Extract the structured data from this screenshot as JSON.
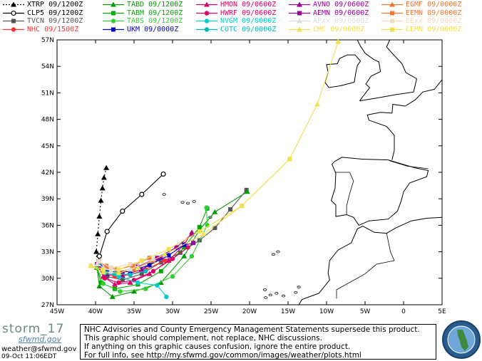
{
  "legend": [
    {
      "name": "XTRP 09/1200Z",
      "color": "#000000",
      "marker": "triangle",
      "line": "dotted"
    },
    {
      "name": "TABD 09/1200Z",
      "color": "#009900",
      "marker": "triangle",
      "line": "solid"
    },
    {
      "name": "HMON 09/0600Z",
      "color": "#dd0066",
      "marker": "triangle",
      "line": "solid"
    },
    {
      "name": "AVNO 09/0600Z",
      "color": "#990099",
      "marker": "triangle",
      "line": "solid"
    },
    {
      "name": "EGMF 09/0000Z",
      "color": "#ee7733",
      "marker": "triangle",
      "line": "solid"
    },
    {
      "name": "CLP5 09/1200Z",
      "color": "#000000",
      "marker": "digit5",
      "line": "solid"
    },
    {
      "name": "TABM 09/1200Z",
      "color": "#00aa00",
      "marker": "square",
      "line": "solid"
    },
    {
      "name": "HWRF 09/0600Z",
      "color": "#dd0066",
      "marker": "circle",
      "line": "solid"
    },
    {
      "name": "AEMN 09/0600Z",
      "color": "#990099",
      "marker": "square",
      "line": "solid"
    },
    {
      "name": "EEMN 09/0000Z",
      "color": "#ee7733",
      "marker": "square",
      "line": "solid"
    },
    {
      "name": "TVCN 09/1200Z",
      "color": "#555555",
      "marker": "square",
      "line": "solid"
    },
    {
      "name": "TABS 09/1200Z",
      "color": "#33cc33",
      "marker": "circle",
      "line": "solid"
    },
    {
      "name": "NVGM 09/0000Z",
      "color": "#00cccc",
      "marker": "circle",
      "line": "solid"
    },
    {
      "name": "APxx 09/0600Z",
      "color": "#dddddd",
      "marker": "triangle",
      "line": "solid"
    },
    {
      "name": "EExx 09/0000Z",
      "color": "#f3d9c0",
      "marker": "square",
      "line": "solid"
    },
    {
      "name": "NHC 09/1500Z",
      "color": "#ff3333",
      "marker": "circle",
      "line": "solid"
    },
    {
      "name": "UKM 09/0000Z",
      "color": "#0000cc",
      "marker": "square",
      "line": "solid"
    },
    {
      "name": "COTC 09/0000Z",
      "color": "#00bbbb",
      "marker": "circle",
      "line": "solid"
    },
    {
      "name": "CMC 09/0000Z",
      "color": "#f0e050",
      "marker": "triangle",
      "line": "solid"
    },
    {
      "name": "CEMN 09/0000Z",
      "color": "#f0e050",
      "marker": "square",
      "line": "solid"
    }
  ],
  "chart_data": {
    "type": "line",
    "title": "",
    "xlabel": "",
    "ylabel": "",
    "x_ticks": [
      "45W",
      "40W",
      "35W",
      "30W",
      "25W",
      "20W",
      "15W",
      "10W",
      "5W",
      "0",
      "5E"
    ],
    "y_ticks": [
      "27N",
      "30N",
      "33N",
      "36N",
      "39N",
      "42N",
      "45N",
      "48N",
      "51N",
      "54N",
      "57N"
    ],
    "xlim": [
      -45,
      5
    ],
    "ylim": [
      27,
      57
    ],
    "grid": false,
    "series": [
      {
        "name": "XTRP 09/1200Z",
        "color": "#000000",
        "marker": "triangle",
        "dash": "2,3",
        "points": [
          [
            -39.8,
            31.2
          ],
          [
            -39.9,
            33.0
          ],
          [
            -39.7,
            35.0
          ],
          [
            -39.5,
            37.0
          ],
          [
            -39.3,
            38.8
          ],
          [
            -39.1,
            40.2
          ],
          [
            -38.9,
            41.4
          ],
          [
            -38.6,
            42.5
          ]
        ]
      },
      {
        "name": "CLP5 09/1200Z",
        "color": "#000000",
        "marker": "digit5",
        "dash": "",
        "points": [
          [
            -39.8,
            31.2
          ],
          [
            -39.5,
            32.5
          ],
          [
            -38.5,
            35.3
          ],
          [
            -36.5,
            37.6
          ],
          [
            -34.0,
            39.5
          ],
          [
            -31.2,
            41.8
          ]
        ]
      },
      {
        "name": "TVCN 09/1200Z",
        "color": "#555555",
        "marker": "square",
        "dash": "",
        "points": [
          [
            -39.8,
            31.2
          ],
          [
            -38.5,
            30.2
          ],
          [
            -36.5,
            29.8
          ],
          [
            -34.0,
            30.5
          ],
          [
            -31.5,
            31.8
          ],
          [
            -29.0,
            32.9
          ],
          [
            -26.5,
            34.3
          ],
          [
            -24.5,
            35.7
          ],
          [
            -22.5,
            37.8
          ],
          [
            -20.4,
            40.0
          ]
        ]
      },
      {
        "name": "NHC 09/1500Z",
        "color": "#ff3333",
        "marker": "circle",
        "dash": "",
        "points": [
          [
            -39.8,
            31.2
          ],
          [
            -38.8,
            30.5
          ],
          [
            -37.5,
            30.2
          ],
          [
            -35.5,
            30.4
          ],
          [
            -33.5,
            31.0
          ],
          [
            -31.0,
            32.0
          ]
        ]
      },
      {
        "name": "TABD 09/1200Z",
        "color": "#009900",
        "marker": "triangle",
        "dash": "",
        "points": [
          [
            -39.8,
            31.2
          ],
          [
            -39.5,
            29.1
          ],
          [
            -37.8,
            27.9
          ],
          [
            -35.0,
            28.5
          ],
          [
            -31.5,
            29.5
          ],
          [
            -28.5,
            32.5
          ],
          [
            -26.5,
            35.5
          ],
          [
            -24.5,
            37.5
          ],
          [
            -20.3,
            39.8
          ]
        ]
      },
      {
        "name": "TABM 09/1200Z",
        "color": "#00aa00",
        "marker": "square",
        "dash": "",
        "points": [
          [
            -39.8,
            31.2
          ],
          [
            -39.3,
            29.5
          ],
          [
            -37.5,
            28.8
          ],
          [
            -34.5,
            29.3
          ],
          [
            -31.5,
            30.8
          ],
          [
            -28.5,
            33.5
          ],
          [
            -26.5,
            35.8
          ],
          [
            -25.5,
            37.9
          ]
        ]
      },
      {
        "name": "TABS 09/1200Z",
        "color": "#33cc33",
        "marker": "circle",
        "dash": "",
        "points": [
          [
            -39.8,
            31.2
          ],
          [
            -39.0,
            29.4
          ],
          [
            -36.8,
            28.5
          ],
          [
            -33.5,
            28.8
          ],
          [
            -30.0,
            30.2
          ],
          [
            -27.5,
            32.5
          ],
          [
            -25.5,
            36.0
          ],
          [
            -25.6,
            38.0
          ]
        ]
      },
      {
        "name": "HMON 09/0600Z",
        "color": "#dd0066",
        "marker": "triangle",
        "dash": "",
        "points": [
          [
            -39.8,
            31.6
          ],
          [
            -39.0,
            30.2
          ],
          [
            -37.5,
            29.3
          ],
          [
            -35.5,
            29.5
          ],
          [
            -33.0,
            30.5
          ],
          [
            -30.5,
            32.0
          ],
          [
            -28.5,
            33.8
          ],
          [
            -27.5,
            35.2
          ]
        ]
      },
      {
        "name": "HWRF 09/0600Z",
        "color": "#dd0066",
        "marker": "circle",
        "dash": "",
        "points": [
          [
            -39.8,
            31.6
          ],
          [
            -38.8,
            30.0
          ],
          [
            -37.0,
            29.5
          ],
          [
            -35.0,
            29.8
          ],
          [
            -32.5,
            30.8
          ],
          [
            -30.0,
            32.2
          ],
          [
            -28.0,
            33.5
          ]
        ]
      },
      {
        "name": "AVNO 09/0600Z",
        "color": "#990099",
        "marker": "triangle",
        "dash": "",
        "points": [
          [
            -39.8,
            31.6
          ],
          [
            -38.5,
            30.5
          ],
          [
            -36.5,
            30.3
          ],
          [
            -34.0,
            31.0
          ],
          [
            -31.5,
            32.3
          ],
          [
            -29.5,
            33.5
          ],
          [
            -27.5,
            35.0
          ]
        ]
      },
      {
        "name": "AEMN 09/0600Z",
        "color": "#990099",
        "marker": "square",
        "dash": "",
        "points": [
          [
            -39.8,
            31.6
          ],
          [
            -38.5,
            30.8
          ],
          [
            -36.5,
            30.7
          ],
          [
            -34.5,
            31.3
          ],
          [
            -32.0,
            32.3
          ],
          [
            -29.5,
            33.5
          ],
          [
            -27.3,
            34.0
          ]
        ]
      },
      {
        "name": "UKM 09/0000Z",
        "color": "#0000cc",
        "marker": "square",
        "dash": "",
        "points": [
          [
            -39.6,
            31.9
          ],
          [
            -38.8,
            31.0
          ],
          [
            -37.5,
            30.6
          ],
          [
            -35.5,
            30.8
          ],
          [
            -33.0,
            31.5
          ],
          [
            -30.5,
            32.6
          ],
          [
            -28.5,
            33.8
          ]
        ]
      },
      {
        "name": "EGMF 09/0000Z",
        "color": "#ee7733",
        "marker": "triangle",
        "dash": "",
        "points": [
          [
            -39.6,
            31.9
          ],
          [
            -38.5,
            31.2
          ],
          [
            -37.0,
            30.8
          ],
          [
            -35.0,
            31.0
          ],
          [
            -32.5,
            32.0
          ]
        ]
      },
      {
        "name": "EEMN 09/0000Z",
        "color": "#ee7733",
        "marker": "square",
        "dash": "",
        "points": [
          [
            -39.6,
            31.9
          ],
          [
            -38.6,
            31.4
          ],
          [
            -37.2,
            31.0
          ],
          [
            -35.2,
            31.4
          ],
          [
            -33.0,
            32.3
          ]
        ]
      },
      {
        "name": "NVGM 09/0000Z",
        "color": "#00cccc",
        "marker": "circle",
        "dash": "",
        "points": [
          [
            -39.6,
            31.9
          ],
          [
            -38.8,
            30.6
          ],
          [
            -37.0,
            30.2
          ],
          [
            -34.5,
            29.5
          ],
          [
            -32.0,
            29.2
          ],
          [
            -30.8,
            27.9
          ]
        ]
      },
      {
        "name": "COTC 09/0000Z",
        "color": "#00bbbb",
        "marker": "circle",
        "dash": "",
        "points": [
          [
            -39.6,
            31.9
          ],
          [
            -39.0,
            31.0
          ],
          [
            -37.5,
            30.5
          ],
          [
            -35.5,
            30.4
          ],
          [
            -33.5,
            30.8
          ]
        ]
      },
      {
        "name": "CMC 09/0000Z",
        "color": "#f0e050",
        "marker": "triangle",
        "dash": "",
        "points": [
          [
            -40.6,
            31.4
          ],
          [
            -39.0,
            30.7
          ],
          [
            -37.0,
            30.6
          ],
          [
            -34.5,
            31.2
          ],
          [
            -31.0,
            32.7
          ],
          [
            -26.0,
            35.0
          ],
          [
            -21.0,
            38.2
          ],
          [
            -14.8,
            43.5
          ],
          [
            -11.2,
            49.7
          ],
          [
            -8.5,
            56.8
          ]
        ]
      },
      {
        "name": "CEMN 09/0000Z",
        "color": "#f0e050",
        "marker": "square",
        "dash": "",
        "points": [
          [
            -40.6,
            31.4
          ],
          [
            -39.0,
            31.0
          ],
          [
            -37.0,
            31.0
          ],
          [
            -34.0,
            32.0
          ],
          [
            -30.5,
            33.3
          ],
          [
            -26.5,
            35.3
          ],
          [
            -21.0,
            38.2
          ],
          [
            -14.8,
            43.5
          ]
        ]
      },
      {
        "name": "APxx 09/0600Z",
        "color": "#dddddd",
        "marker": "triangle",
        "dash": "",
        "points": [
          [
            -39.8,
            31.6
          ],
          [
            -38.0,
            30.8
          ],
          [
            -35.5,
            31.0
          ],
          [
            -32.5,
            32.2
          ]
        ]
      },
      {
        "name": "EExx 09/0000Z",
        "color": "#f3d9c0",
        "marker": "square",
        "dash": "",
        "points": [
          [
            -39.6,
            31.9
          ],
          [
            -38.0,
            31.2
          ],
          [
            -35.5,
            31.6
          ]
        ]
      }
    ]
  },
  "disclaimer": {
    "line1": "NHC Advisories and County Emergency Management Statements supersede this product.",
    "line2": "This graphic should complement, not replace, NHC discussions.",
    "line3": "If anything on this graphic causes confusion, ignore the entire product.",
    "line4": "For full info, see  http://my.sfwmd.gov/common/images/weather/plots.html"
  },
  "branding": {
    "storm": "storm_17",
    "sfwmd": "sfwmd.gov",
    "email": "weather@sfwmd.gov",
    "timestamp": "09-Oct 11:06EDT"
  }
}
